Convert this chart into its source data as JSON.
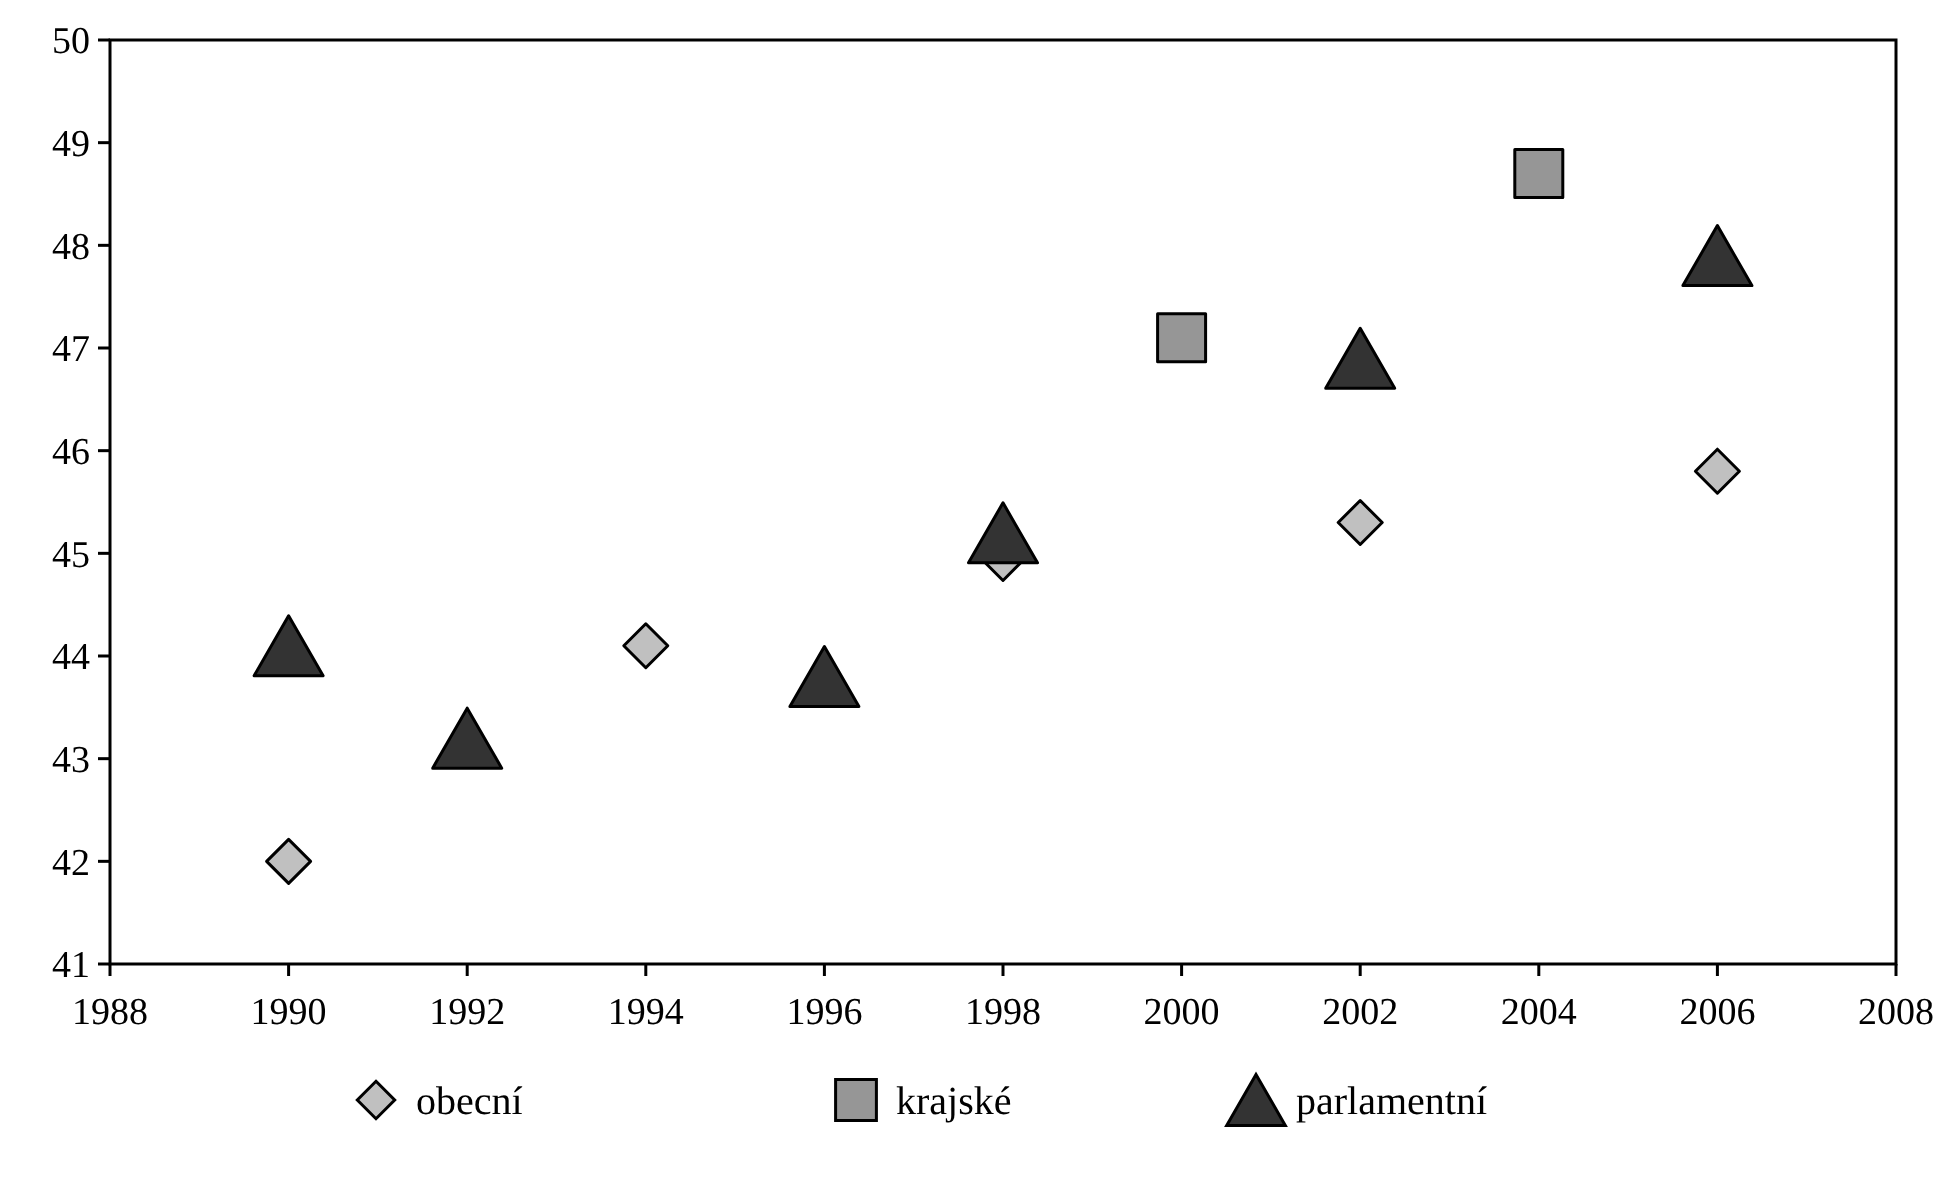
{
  "chart_data": {
    "type": "scatter",
    "xlim": [
      1988,
      2008
    ],
    "xticks": [
      1988,
      1990,
      1992,
      1994,
      1996,
      1998,
      2000,
      2002,
      2004,
      2006,
      2008
    ],
    "ylim": [
      41,
      50
    ],
    "yticks": [
      41,
      42,
      43,
      44,
      45,
      46,
      47,
      48,
      49,
      50
    ],
    "grid": false,
    "legend": "bottom",
    "series": [
      {
        "name": "obecní",
        "color": "#c0c0c0",
        "marker": "diamond",
        "x": [
          1990,
          1994,
          1998,
          2002,
          2006
        ],
        "values": [
          42.0,
          44.1,
          44.95,
          45.3,
          45.8
        ]
      },
      {
        "name": "krajské",
        "color": "#969696",
        "marker": "square",
        "x": [
          2000,
          2004
        ],
        "values": [
          47.1,
          48.7
        ]
      },
      {
        "name": "parlamentní",
        "color": "#333333",
        "marker": "triangle",
        "x": [
          1990,
          1992,
          1996,
          1998,
          2002,
          2006
        ],
        "values": [
          44.1,
          43.2,
          43.8,
          45.2,
          46.9,
          47.9
        ]
      }
    ]
  }
}
